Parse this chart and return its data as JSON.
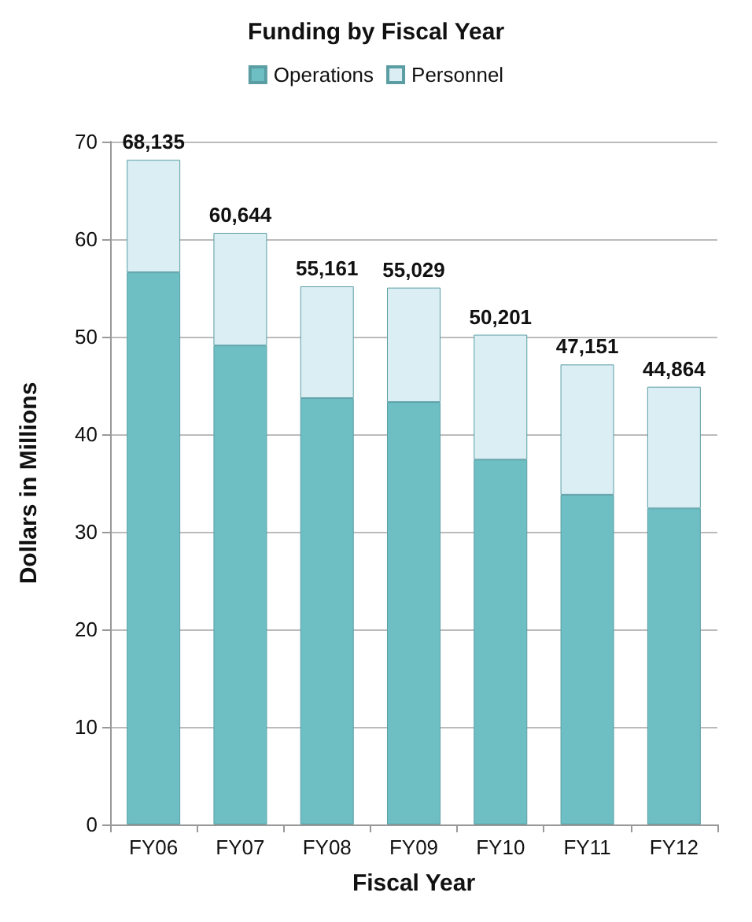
{
  "chart_data": {
    "type": "bar",
    "title": "Funding by Fiscal Year",
    "xlabel": "Fiscal Year",
    "ylabel": "Dollars in Millions",
    "categories": [
      "FY06",
      "FY07",
      "FY08",
      "FY09",
      "FY10",
      "FY11",
      "FY12"
    ],
    "stacked": true,
    "series": [
      {
        "name": "Operations",
        "color": "#6dbfc4",
        "values": [
          56.6,
          49.1,
          43.7,
          43.3,
          37.4,
          33.8,
          32.4
        ]
      },
      {
        "name": "Personnel",
        "color": "#daeef3",
        "values": [
          11.535,
          11.544,
          11.461,
          11.729,
          12.801,
          13.351,
          12.464
        ]
      }
    ],
    "totals": [
      "68,135",
      "60,644",
      "55,161",
      "55,029",
      "50,201",
      "47,151",
      "44,864"
    ],
    "ylim": [
      0,
      70
    ],
    "yticks": [
      0,
      10,
      20,
      30,
      40,
      50,
      60,
      70
    ],
    "grid": "y",
    "legend": "top"
  }
}
